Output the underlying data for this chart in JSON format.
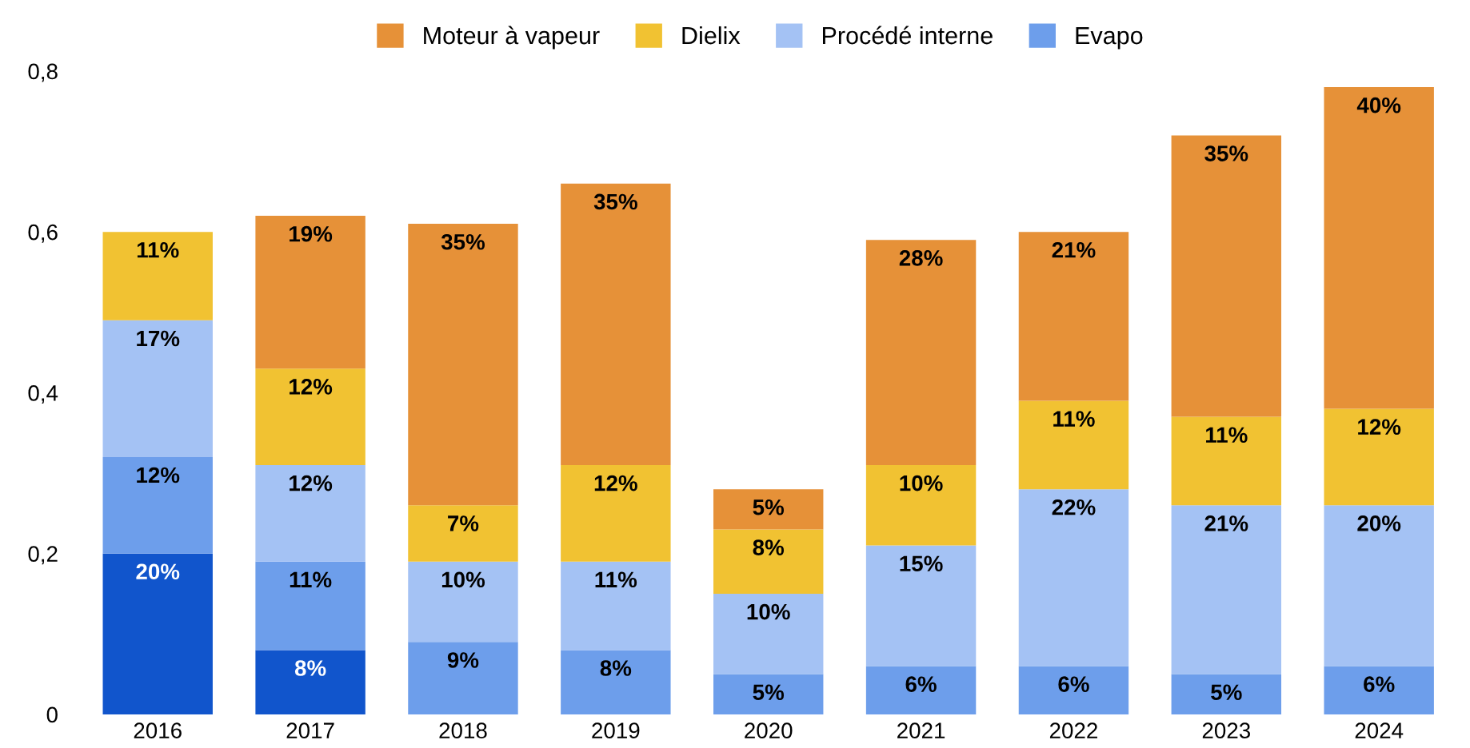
{
  "chart_data": {
    "type": "bar",
    "stacked": true,
    "legend": "top",
    "grid": false,
    "categories": [
      "2016",
      "2017",
      "2018",
      "2019",
      "2020",
      "2021",
      "2022",
      "2023",
      "2024"
    ],
    "ylim": [
      0,
      0.8
    ],
    "yticks": [
      0,
      {
        "value": 0.2,
        "label": "0,2"
      },
      {
        "value": 0.4,
        "label": "0,4"
      },
      {
        "value": 0.6,
        "label": "0,6"
      },
      {
        "value": 0.8,
        "label": "0,8"
      }
    ],
    "series": [
      {
        "color": "#1155cc",
        "values": [
          0.2,
          0.08,
          null,
          null,
          null,
          null,
          null,
          null,
          null
        ],
        "value_labels": [
          "20%",
          "8%",
          null,
          null,
          null,
          null,
          null,
          null,
          null
        ]
      },
      {
        "name": "Evapo",
        "color": "#6d9eeb",
        "values": [
          0.12,
          0.11,
          0.09,
          0.08,
          0.05,
          0.06,
          0.06,
          0.05,
          0.06
        ],
        "value_labels": [
          "12%",
          "11%",
          "9%",
          "8%",
          "5%",
          "6%",
          "6%",
          "5%",
          "6%"
        ]
      },
      {
        "name": "Procédé interne",
        "color": "#a4c2f4",
        "values": [
          0.17,
          0.12,
          0.1,
          0.11,
          0.1,
          0.15,
          0.22,
          0.21,
          0.2
        ],
        "value_labels": [
          "17%",
          "12%",
          "10%",
          "11%",
          "10%",
          "15%",
          "22%",
          "21%",
          "20%"
        ]
      },
      {
        "name": "Dielix",
        "color": "#f1c232",
        "values": [
          0.11,
          0.12,
          0.07,
          0.12,
          0.08,
          0.1,
          0.11,
          0.11,
          0.12
        ],
        "value_labels": [
          "11%",
          "12%",
          "7%",
          "12%",
          "8%",
          "10%",
          "11%",
          "11%",
          "12%"
        ]
      },
      {
        "name": "Moteur à vapeur",
        "color": "#e69138",
        "values": [
          null,
          0.19,
          0.35,
          0.35,
          0.05,
          0.28,
          0.21,
          0.35,
          0.4
        ],
        "value_labels": [
          null,
          "19%",
          "35%",
          "35%",
          "5%",
          "28%",
          "21%",
          "35%",
          "40%"
        ]
      }
    ]
  }
}
